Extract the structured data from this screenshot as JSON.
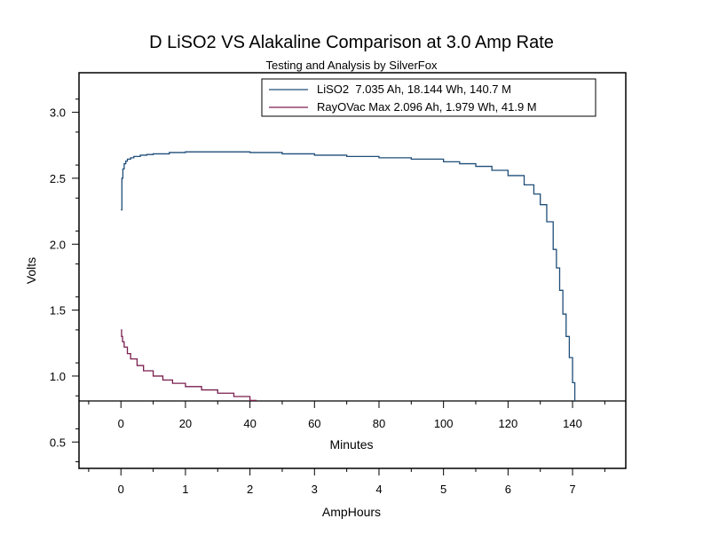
{
  "chart_data": {
    "type": "line",
    "title": "D LiSO2 VS Alakaline Comparison at 3.0 Amp Rate",
    "subtitle": "Testing and Analysis by SilverFox",
    "ylabel": "Volts",
    "xlabel_top": "Minutes",
    "xlabel_bottom": "AmpHours",
    "ylim": [
      0.3,
      3.3
    ],
    "xlim_minutes": [
      -13,
      156.5
    ],
    "xlim_amphours": [
      -0.65,
      7.825
    ],
    "yticks": [
      "0.5",
      "1.0",
      "1.5",
      "2.0",
      "2.5",
      "3.0"
    ],
    "xticks_minutes": [
      "0",
      "20",
      "40",
      "60",
      "80",
      "100",
      "120",
      "140"
    ],
    "xticks_amphours": [
      "0",
      "1",
      "2",
      "3",
      "4",
      "5",
      "6",
      "7"
    ],
    "series": [
      {
        "name": "LiSO2  7.035 Ah, 18.144 Wh, 140.7 M",
        "color": "#1f4e79",
        "x": [
          0,
          0.3,
          0.6,
          1,
          1.5,
          2,
          3,
          4,
          6,
          8,
          10,
          15,
          20,
          30,
          40,
          50,
          60,
          70,
          80,
          90,
          100,
          105,
          110,
          115,
          120,
          125,
          128,
          130,
          132,
          134,
          135,
          136,
          137,
          138,
          139,
          140,
          140.7
        ],
        "values": [
          2.26,
          2.5,
          2.57,
          2.61,
          2.63,
          2.645,
          2.655,
          2.665,
          2.675,
          2.68,
          2.685,
          2.695,
          2.7,
          2.7,
          2.695,
          2.685,
          2.675,
          2.665,
          2.655,
          2.645,
          2.625,
          2.61,
          2.59,
          2.56,
          2.52,
          2.45,
          2.38,
          2.3,
          2.17,
          1.96,
          1.82,
          1.65,
          1.47,
          1.3,
          1.14,
          0.95,
          0.8
        ]
      },
      {
        "name": "RayOVac Max 2.096 Ah, 1.979 Wh, 41.9 M",
        "color": "#7a1f4e",
        "x": [
          0,
          0.2,
          0.5,
          1,
          2,
          3,
          5,
          7,
          10,
          13,
          16,
          20,
          25,
          30,
          35,
          40,
          41.9
        ],
        "values": [
          1.35,
          1.3,
          1.26,
          1.22,
          1.17,
          1.13,
          1.08,
          1.04,
          1.0,
          0.97,
          0.945,
          0.92,
          0.895,
          0.87,
          0.845,
          0.815,
          0.8
        ]
      }
    ]
  }
}
